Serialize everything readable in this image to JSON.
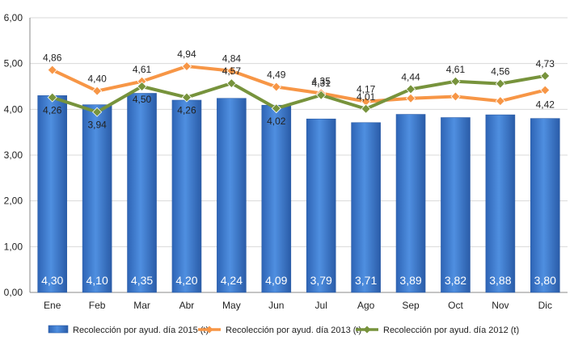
{
  "chart_data": {
    "type": "bar",
    "categories": [
      "Ene",
      "Feb",
      "Mar",
      "Abr",
      "May",
      "Jun",
      "Jul",
      "Ago",
      "Sep",
      "Oct",
      "Nov",
      "Dic"
    ],
    "ylim": [
      0,
      6
    ],
    "yticks": [
      "0,00",
      "1,00",
      "2,00",
      "3,00",
      "4,00",
      "5,00",
      "6,00"
    ],
    "ytick_values": [
      0,
      1,
      2,
      3,
      4,
      5,
      6
    ],
    "grid": true,
    "legend_position": "bottom",
    "series": [
      {
        "name": "Recolección por ayud. día 2015 (t)",
        "kind": "bar",
        "color": "#3F7FD6",
        "values": [
          4.3,
          4.1,
          4.35,
          4.2,
          4.24,
          4.09,
          3.79,
          3.71,
          3.89,
          3.82,
          3.88,
          3.8
        ],
        "labels": [
          "4,30",
          "4,10",
          "4,35",
          "4,20",
          "4,24",
          "4,09",
          "3,79",
          "3,71",
          "3,89",
          "3,82",
          "3,88",
          "3,80"
        ]
      },
      {
        "name": "Recolección por ayud. día 2013 (t)",
        "kind": "line",
        "color": "#F79646",
        "values": [
          4.86,
          4.4,
          4.61,
          4.94,
          4.84,
          4.49,
          4.35,
          4.17,
          4.24,
          4.28,
          4.18,
          4.42
        ],
        "labels": [
          "4,86",
          "4,40",
          "4,61",
          "4,94",
          "4,84",
          "4,49",
          "4,35",
          "4,17",
          "",
          "",
          "",
          "4,42"
        ]
      },
      {
        "name": "Recolección por ayud. día 2012 (t)",
        "kind": "line",
        "color": "#77933C",
        "values": [
          4.26,
          3.94,
          4.5,
          4.26,
          4.57,
          4.02,
          4.31,
          4.01,
          4.44,
          4.61,
          4.56,
          4.73
        ],
        "labels": [
          "4,26",
          "3,94",
          "4,50",
          "4,26",
          "4,57",
          "4,02",
          "4,31",
          "4,01",
          "4,44",
          "4,61",
          "4,56",
          "4,73"
        ]
      }
    ]
  }
}
